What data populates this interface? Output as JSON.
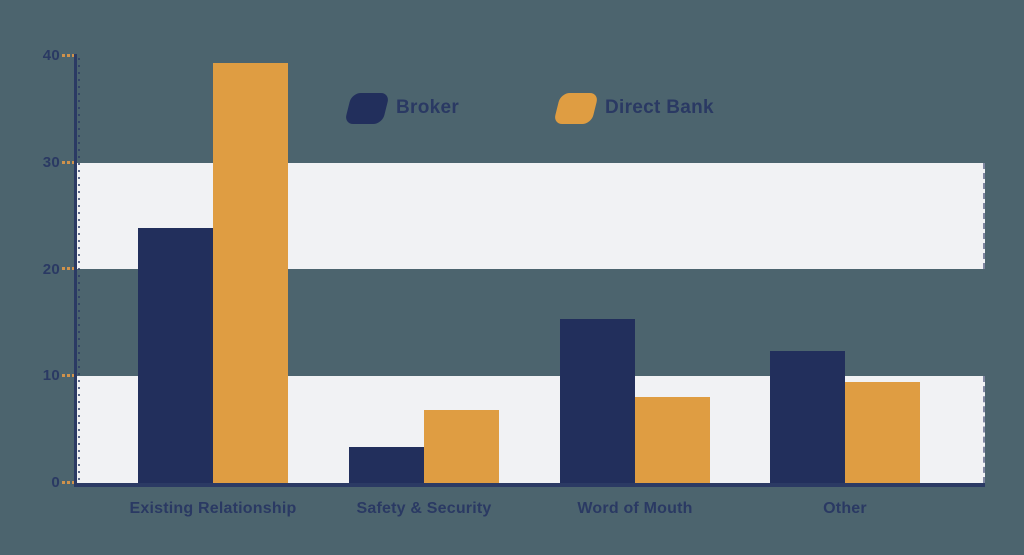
{
  "colors": {
    "background": "#4C646E",
    "band": "#F1F2F4",
    "axis": "#2B3A64",
    "label_text": "#2A3963",
    "tick_dash": "#D0924B",
    "broker": "#222F5C",
    "direct_bank": "#DF9D42"
  },
  "legend": {
    "items": [
      {
        "label": "Broker",
        "color": "#222F5C"
      },
      {
        "label": "Direct Bank",
        "color": "#DF9D42"
      }
    ]
  },
  "chart_data": {
    "type": "bar",
    "title": "",
    "categories": [
      "Existing Relationship",
      "Safety & Security",
      "Word of Mouth",
      "Other"
    ],
    "series": [
      {
        "name": "Broker",
        "color": "#222F5C",
        "values": [
          23.9,
          3.4,
          15.4,
          12.4
        ]
      },
      {
        "name": "Direct Bank",
        "color": "#DF9D42",
        "values": [
          39.3,
          6.8,
          8.1,
          9.5
        ]
      }
    ],
    "xlabel": "",
    "ylabel": "",
    "ylim": [
      0,
      40
    ],
    "yticks": [
      0,
      10,
      20,
      30,
      40
    ],
    "grid": "alternating horizontal background bands",
    "background_bands": [
      [
        0,
        10
      ],
      [
        20,
        30
      ]
    ],
    "legend_position": "top-center"
  }
}
